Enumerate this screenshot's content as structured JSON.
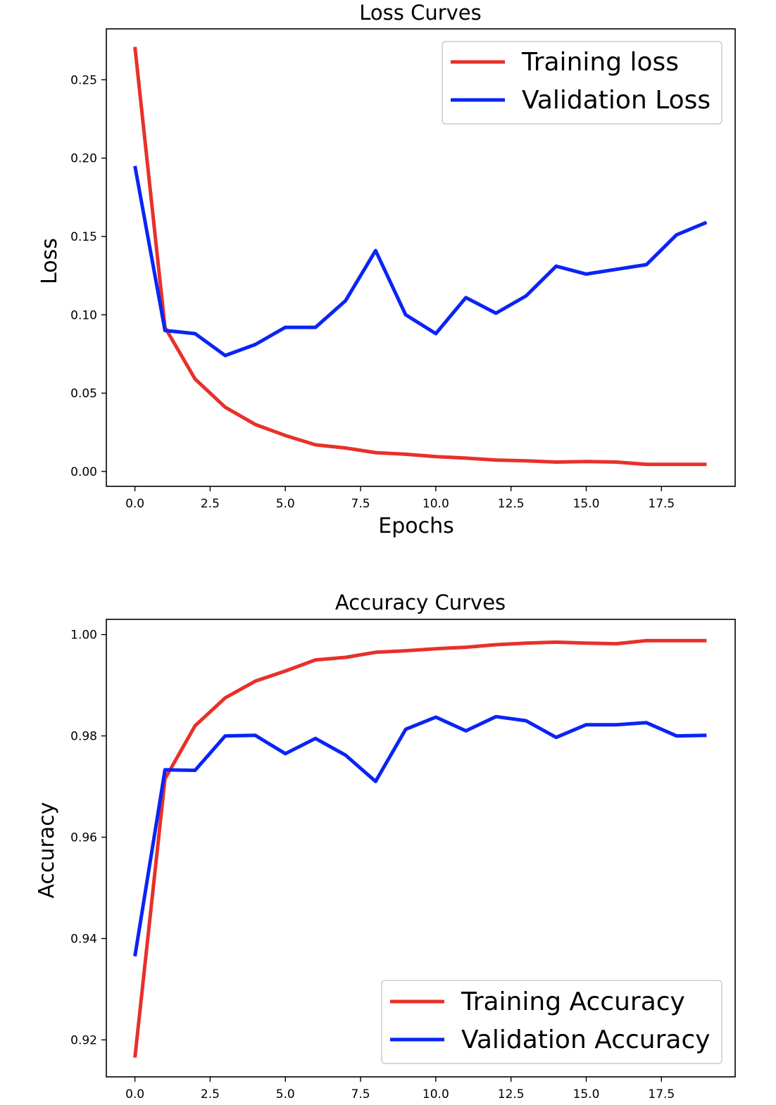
{
  "chart_data": [
    {
      "type": "line",
      "title": "Loss Curves",
      "xlabel": "Epochs",
      "ylabel": "Loss",
      "xlim": [
        -0.95,
        19.95
      ],
      "ylim": [
        -0.0095,
        0.2825
      ],
      "xticks": [
        0.0,
        2.5,
        5.0,
        7.5,
        10.0,
        12.5,
        15.0,
        17.5
      ],
      "xtick_labels": [
        "0.0",
        "2.5",
        "5.0",
        "7.5",
        "10.0",
        "12.5",
        "15.0",
        "17.5"
      ],
      "yticks": [
        0.0,
        0.05,
        0.1,
        0.15,
        0.2,
        0.25
      ],
      "ytick_labels": [
        "0.00",
        "0.05",
        "0.10",
        "0.15",
        "0.20",
        "0.25"
      ],
      "grid": false,
      "legend_position": "top-right",
      "x": [
        0,
        1,
        2,
        3,
        4,
        5,
        6,
        7,
        8,
        9,
        10,
        11,
        12,
        13,
        14,
        15,
        16,
        17,
        18,
        19
      ],
      "series": [
        {
          "name": "Training loss",
          "color": "#e8302a",
          "values": [
            0.271,
            0.092,
            0.059,
            0.041,
            0.03,
            0.023,
            0.017,
            0.015,
            0.012,
            0.011,
            0.0095,
            0.0085,
            0.0073,
            0.0068,
            0.006,
            0.0063,
            0.006,
            0.0045,
            0.0045,
            0.0045
          ]
        },
        {
          "name": "Validation Loss",
          "color": "#0a24f5",
          "values": [
            0.195,
            0.09,
            0.088,
            0.074,
            0.081,
            0.092,
            0.092,
            0.109,
            0.141,
            0.1,
            0.088,
            0.111,
            0.101,
            0.112,
            0.131,
            0.126,
            0.129,
            0.132,
            0.151,
            0.159
          ]
        }
      ]
    },
    {
      "type": "line",
      "title": "Accuracy Curves",
      "xlabel": "",
      "ylabel": "Accuracy",
      "xlim": [
        -0.95,
        19.95
      ],
      "ylim": [
        0.9127,
        1.003
      ],
      "xticks": [
        0.0,
        2.5,
        5.0,
        7.5,
        10.0,
        12.5,
        15.0,
        17.5
      ],
      "xtick_labels": [
        "0.0",
        "2.5",
        "5.0",
        "7.5",
        "10.0",
        "12.5",
        "15.0",
        "17.5"
      ],
      "yticks": [
        0.92,
        0.94,
        0.96,
        0.98,
        1.0
      ],
      "ytick_labels": [
        "0.92",
        "0.94",
        "0.96",
        "0.98",
        "1.00"
      ],
      "grid": false,
      "legend_position": "bottom-right",
      "x": [
        0,
        1,
        2,
        3,
        4,
        5,
        6,
        7,
        8,
        9,
        10,
        11,
        12,
        13,
        14,
        15,
        16,
        17,
        18,
        19
      ],
      "series": [
        {
          "name": "Training Accuracy",
          "color": "#e8302a",
          "values": [
            0.9165,
            0.9715,
            0.982,
            0.9875,
            0.9908,
            0.9928,
            0.995,
            0.9955,
            0.9965,
            0.9968,
            0.9972,
            0.9975,
            0.998,
            0.9983,
            0.9985,
            0.9983,
            0.9982,
            0.9988,
            0.9988,
            0.9988
          ]
        },
        {
          "name": "Validation Accuracy",
          "color": "#0a24f5",
          "values": [
            0.9365,
            0.9733,
            0.9732,
            0.98,
            0.9801,
            0.9765,
            0.9795,
            0.9762,
            0.971,
            0.9813,
            0.9837,
            0.981,
            0.9838,
            0.983,
            0.9797,
            0.9822,
            0.9822,
            0.9826,
            0.98,
            0.9801
          ]
        }
      ]
    }
  ]
}
